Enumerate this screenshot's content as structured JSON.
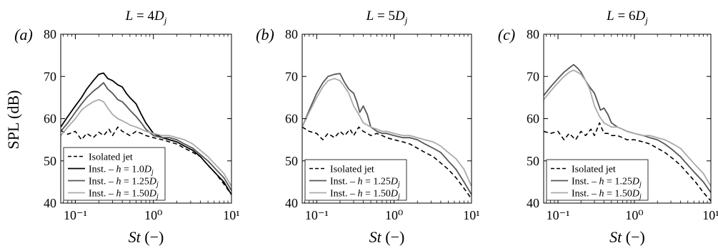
{
  "figure": {
    "ylabel": "SPL (dB)",
    "xlabel": "St (−)"
  },
  "chart_data": [
    {
      "type": "line",
      "panel_label": "(a)",
      "title": "L = 4D_j",
      "xlabel": "St (−)",
      "ylabel": "SPL (dB)",
      "xscale": "log",
      "xlim": [
        0.065,
        10
      ],
      "ylim": [
        40,
        80
      ],
      "yticks": [
        40,
        50,
        60,
        70,
        80
      ],
      "xticks": [
        0.1,
        1,
        10
      ],
      "xtick_labels": [
        "10⁻¹",
        "10⁰",
        "10¹"
      ],
      "legend_position": "lower-left",
      "series": [
        {
          "name": "Isolated jet",
          "color": "#000000",
          "dash": "6,4",
          "width": 1.6,
          "x": [
            0.065,
            0.08,
            0.1,
            0.12,
            0.14,
            0.17,
            0.2,
            0.23,
            0.27,
            0.3,
            0.35,
            0.4,
            0.45,
            0.5,
            0.6,
            0.7,
            0.8,
            1.0,
            1.3,
            1.6,
            2.0,
            2.5,
            3.2,
            4.0,
            5.0,
            6.3,
            8.0,
            10.0
          ],
          "y": [
            57.2,
            56.3,
            57,
            55,
            56.5,
            55.5,
            56.8,
            56,
            57.5,
            56,
            58,
            57,
            56.5,
            56,
            57,
            56.5,
            56,
            55.5,
            55,
            54.5,
            54,
            53,
            52,
            51,
            49,
            47,
            44.5,
            42
          ]
        },
        {
          "name": "Inst. – h = 1.0D_j",
          "color": "#000000",
          "dash": "",
          "width": 1.8,
          "x": [
            0.065,
            0.08,
            0.1,
            0.12,
            0.14,
            0.17,
            0.2,
            0.23,
            0.26,
            0.3,
            0.35,
            0.4,
            0.45,
            0.5,
            0.6,
            0.7,
            0.8,
            1.0,
            1.3,
            1.6,
            2.0,
            2.5,
            3.2,
            4.0,
            5.0,
            6.3,
            8.0,
            10.0
          ],
          "y": [
            58,
            60.5,
            63,
            65,
            67,
            69,
            70.5,
            70.8,
            69.5,
            69,
            68,
            67.5,
            66,
            65,
            63.5,
            61,
            59,
            56.5,
            55.5,
            55,
            54.5,
            53.5,
            52.5,
            51,
            49,
            47,
            45,
            42
          ]
        },
        {
          "name": "Inst. – h = 1.25D_j",
          "color": "#555555",
          "dash": "",
          "width": 1.8,
          "x": [
            0.065,
            0.08,
            0.1,
            0.12,
            0.14,
            0.17,
            0.2,
            0.23,
            0.26,
            0.3,
            0.35,
            0.4,
            0.45,
            0.5,
            0.6,
            0.7,
            0.8,
            1.0,
            1.3,
            1.6,
            2.0,
            2.5,
            3.2,
            4.0,
            5.0,
            6.3,
            8.0,
            10.0
          ],
          "y": [
            57,
            59,
            61.5,
            63.5,
            65,
            66.5,
            67.5,
            68.5,
            67,
            66,
            64.5,
            64,
            63,
            62,
            60.5,
            59,
            57.5,
            56,
            55.5,
            55.5,
            55,
            54,
            53,
            51.5,
            50,
            48,
            46,
            43
          ]
        },
        {
          "name": "Inst. – h = 1.50D_j",
          "color": "#aaaaaa",
          "dash": "",
          "width": 1.8,
          "x": [
            0.065,
            0.08,
            0.1,
            0.12,
            0.14,
            0.17,
            0.2,
            0.23,
            0.26,
            0.3,
            0.35,
            0.4,
            0.45,
            0.5,
            0.6,
            0.7,
            0.8,
            1.0,
            1.3,
            1.6,
            2.0,
            2.5,
            3.2,
            4.0,
            5.0,
            6.3,
            8.0,
            10.0
          ],
          "y": [
            56,
            58,
            60,
            62,
            63,
            64,
            64.5,
            64,
            62.5,
            61,
            60,
            59.5,
            59,
            58.5,
            58,
            57.5,
            57,
            56.5,
            56,
            56,
            55.5,
            55,
            54,
            52.5,
            51,
            49,
            47,
            44
          ]
        }
      ]
    },
    {
      "type": "line",
      "panel_label": "(b)",
      "title": "L = 5D_j",
      "xlabel": "St (−)",
      "xscale": "log",
      "xlim": [
        0.065,
        10
      ],
      "ylim": [
        40,
        80
      ],
      "yticks": [
        40,
        50,
        60,
        70,
        80
      ],
      "xticks": [
        0.1,
        1,
        10
      ],
      "xtick_labels": [
        "10⁻¹",
        "10⁰",
        "10¹"
      ],
      "legend_position": "lower-left",
      "series": [
        {
          "name": "Isolated jet",
          "color": "#000000",
          "dash": "6,4",
          "width": 1.6,
          "x": [
            0.065,
            0.08,
            0.1,
            0.12,
            0.14,
            0.17,
            0.2,
            0.23,
            0.27,
            0.3,
            0.35,
            0.4,
            0.45,
            0.5,
            0.6,
            0.7,
            0.8,
            1.0,
            1.3,
            1.6,
            2.0,
            2.5,
            3.2,
            4.0,
            5.0,
            6.3,
            8.0,
            10.0
          ],
          "y": [
            58,
            57,
            56.5,
            55,
            56.5,
            55.5,
            57,
            56,
            57.5,
            56,
            58,
            57,
            56.5,
            56,
            56.5,
            56,
            55.5,
            55,
            54.5,
            54,
            53,
            52,
            51,
            49.5,
            48,
            46,
            43.5,
            41
          ]
        },
        {
          "name": "Inst. – h = 1.25D_j",
          "color": "#555555",
          "dash": "",
          "width": 1.8,
          "x": [
            0.065,
            0.08,
            0.1,
            0.12,
            0.14,
            0.17,
            0.2,
            0.23,
            0.26,
            0.3,
            0.33,
            0.36,
            0.4,
            0.45,
            0.5,
            0.6,
            0.7,
            0.8,
            1.0,
            1.3,
            1.6,
            2.0,
            2.5,
            3.2,
            4.0,
            5.0,
            6.3,
            8.0,
            10.0
          ],
          "y": [
            58,
            62,
            66,
            68.5,
            70,
            70.5,
            70.7,
            68.5,
            67,
            66,
            64,
            61.5,
            63,
            61,
            58,
            57,
            56.5,
            56.5,
            56,
            55.5,
            55.5,
            55,
            54,
            53,
            52,
            50,
            48,
            45,
            42
          ]
        },
        {
          "name": "Inst. – h = 1.50D_j",
          "color": "#aaaaaa",
          "dash": "",
          "width": 1.8,
          "x": [
            0.065,
            0.08,
            0.1,
            0.12,
            0.14,
            0.17,
            0.2,
            0.23,
            0.26,
            0.3,
            0.35,
            0.4,
            0.45,
            0.5,
            0.6,
            0.7,
            0.8,
            1.0,
            1.3,
            1.6,
            2.0,
            2.5,
            3.2,
            4.0,
            5.0,
            6.3,
            8.0,
            10.0
          ],
          "y": [
            58,
            61.5,
            65,
            67.5,
            69,
            69.5,
            69,
            67.5,
            66,
            63,
            61,
            59,
            58.5,
            58,
            57.5,
            57,
            57,
            56.5,
            56,
            56,
            55.5,
            55,
            54.5,
            53.5,
            52,
            50.5,
            48,
            44
          ]
        }
      ]
    },
    {
      "type": "line",
      "panel_label": "(c)",
      "title": "L = 6D_j",
      "xlabel": "St (−)",
      "xscale": "log",
      "xlim": [
        0.065,
        10
      ],
      "ylim": [
        40,
        80
      ],
      "yticks": [
        40,
        50,
        60,
        70,
        80
      ],
      "xticks": [
        0.1,
        1,
        10
      ],
      "xtick_labels": [
        "10⁻¹",
        "10⁰",
        "10¹"
      ],
      "legend_position": "lower-left",
      "series": [
        {
          "name": "Isolated jet",
          "color": "#000000",
          "dash": "6,4",
          "width": 1.6,
          "x": [
            0.065,
            0.08,
            0.1,
            0.12,
            0.14,
            0.17,
            0.2,
            0.23,
            0.27,
            0.3,
            0.35,
            0.4,
            0.45,
            0.5,
            0.6,
            0.7,
            0.8,
            1.0,
            1.3,
            1.6,
            2.0,
            2.5,
            3.2,
            4.0,
            5.0,
            6.3,
            8.0,
            10.0
          ],
          "y": [
            57,
            56.5,
            57,
            55,
            56.5,
            55,
            57,
            56,
            57.5,
            56,
            59,
            56.5,
            56.5,
            56,
            56,
            55.5,
            55,
            55,
            54.5,
            54,
            53,
            52,
            50.5,
            49,
            47,
            45,
            42.5,
            40.5
          ]
        },
        {
          "name": "Inst. – h = 1.25D_j",
          "color": "#555555",
          "dash": "",
          "width": 1.8,
          "x": [
            0.065,
            0.08,
            0.1,
            0.12,
            0.14,
            0.16,
            0.18,
            0.2,
            0.23,
            0.26,
            0.3,
            0.33,
            0.36,
            0.4,
            0.45,
            0.5,
            0.6,
            0.7,
            0.8,
            1.0,
            1.3,
            1.6,
            2.0,
            2.5,
            3.2,
            4.0,
            5.0,
            6.3,
            8.0,
            10.0
          ],
          "y": [
            65.5,
            67.5,
            69.5,
            71,
            72,
            72.8,
            72,
            71,
            69,
            67.5,
            66,
            64,
            62,
            62.5,
            61,
            59,
            58,
            57.5,
            57,
            56.5,
            56,
            55.5,
            55,
            54,
            52.5,
            51,
            49,
            47,
            45,
            42.5
          ]
        },
        {
          "name": "Inst. – h = 1.50D_j",
          "color": "#aaaaaa",
          "dash": "",
          "width": 1.8,
          "x": [
            0.065,
            0.08,
            0.1,
            0.12,
            0.14,
            0.16,
            0.18,
            0.2,
            0.23,
            0.26,
            0.3,
            0.35,
            0.4,
            0.45,
            0.5,
            0.6,
            0.7,
            0.8,
            1.0,
            1.3,
            1.6,
            2.0,
            2.5,
            3.2,
            4.0,
            5.0,
            6.3,
            8.0,
            10.0
          ],
          "y": [
            64.5,
            66.5,
            68.5,
            70,
            71,
            71.5,
            71,
            70.5,
            69,
            67,
            63,
            60.5,
            59,
            58.5,
            58,
            58,
            57.5,
            57,
            56.5,
            56,
            56,
            55.5,
            55,
            54,
            53,
            51,
            49,
            47,
            44
          ]
        }
      ]
    }
  ]
}
